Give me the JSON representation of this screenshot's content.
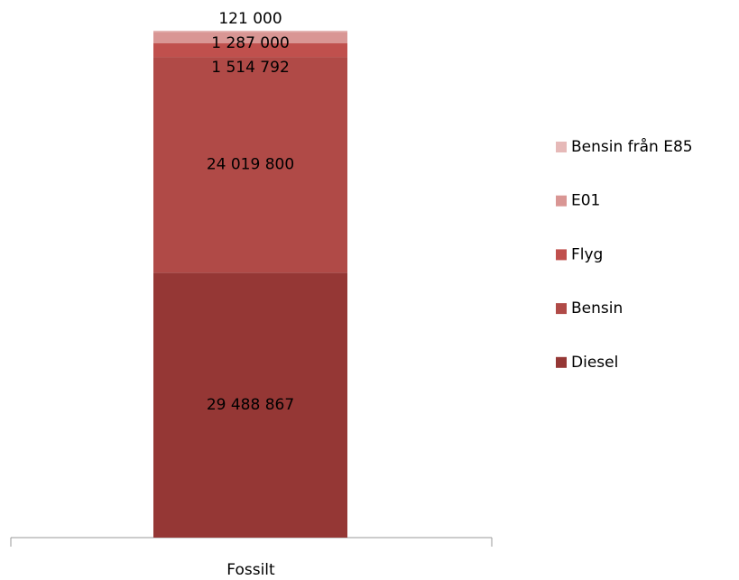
{
  "chart_data": {
    "type": "stacked_bar",
    "categories": [
      "Fossilt"
    ],
    "series": [
      {
        "name": "Diesel",
        "color": "#953735",
        "values": [
          29488867
        ],
        "value_labels": [
          "29 488 867"
        ]
      },
      {
        "name": "Bensin",
        "color": "#b04a47",
        "values": [
          24019800
        ],
        "value_labels": [
          "24 019 800"
        ]
      },
      {
        "name": "Flyg",
        "color": "#c0504d",
        "values": [
          1514792
        ],
        "value_labels": [
          "1 514 792"
        ]
      },
      {
        "name": "E01",
        "color": "#d99694",
        "values": [
          1287000
        ],
        "value_labels": [
          "1 287 000"
        ]
      },
      {
        "name": "Bensin från E85",
        "color": "#e6b9b8",
        "values": [
          121000
        ],
        "value_labels": [
          "121 000"
        ]
      }
    ],
    "legend": "right"
  }
}
